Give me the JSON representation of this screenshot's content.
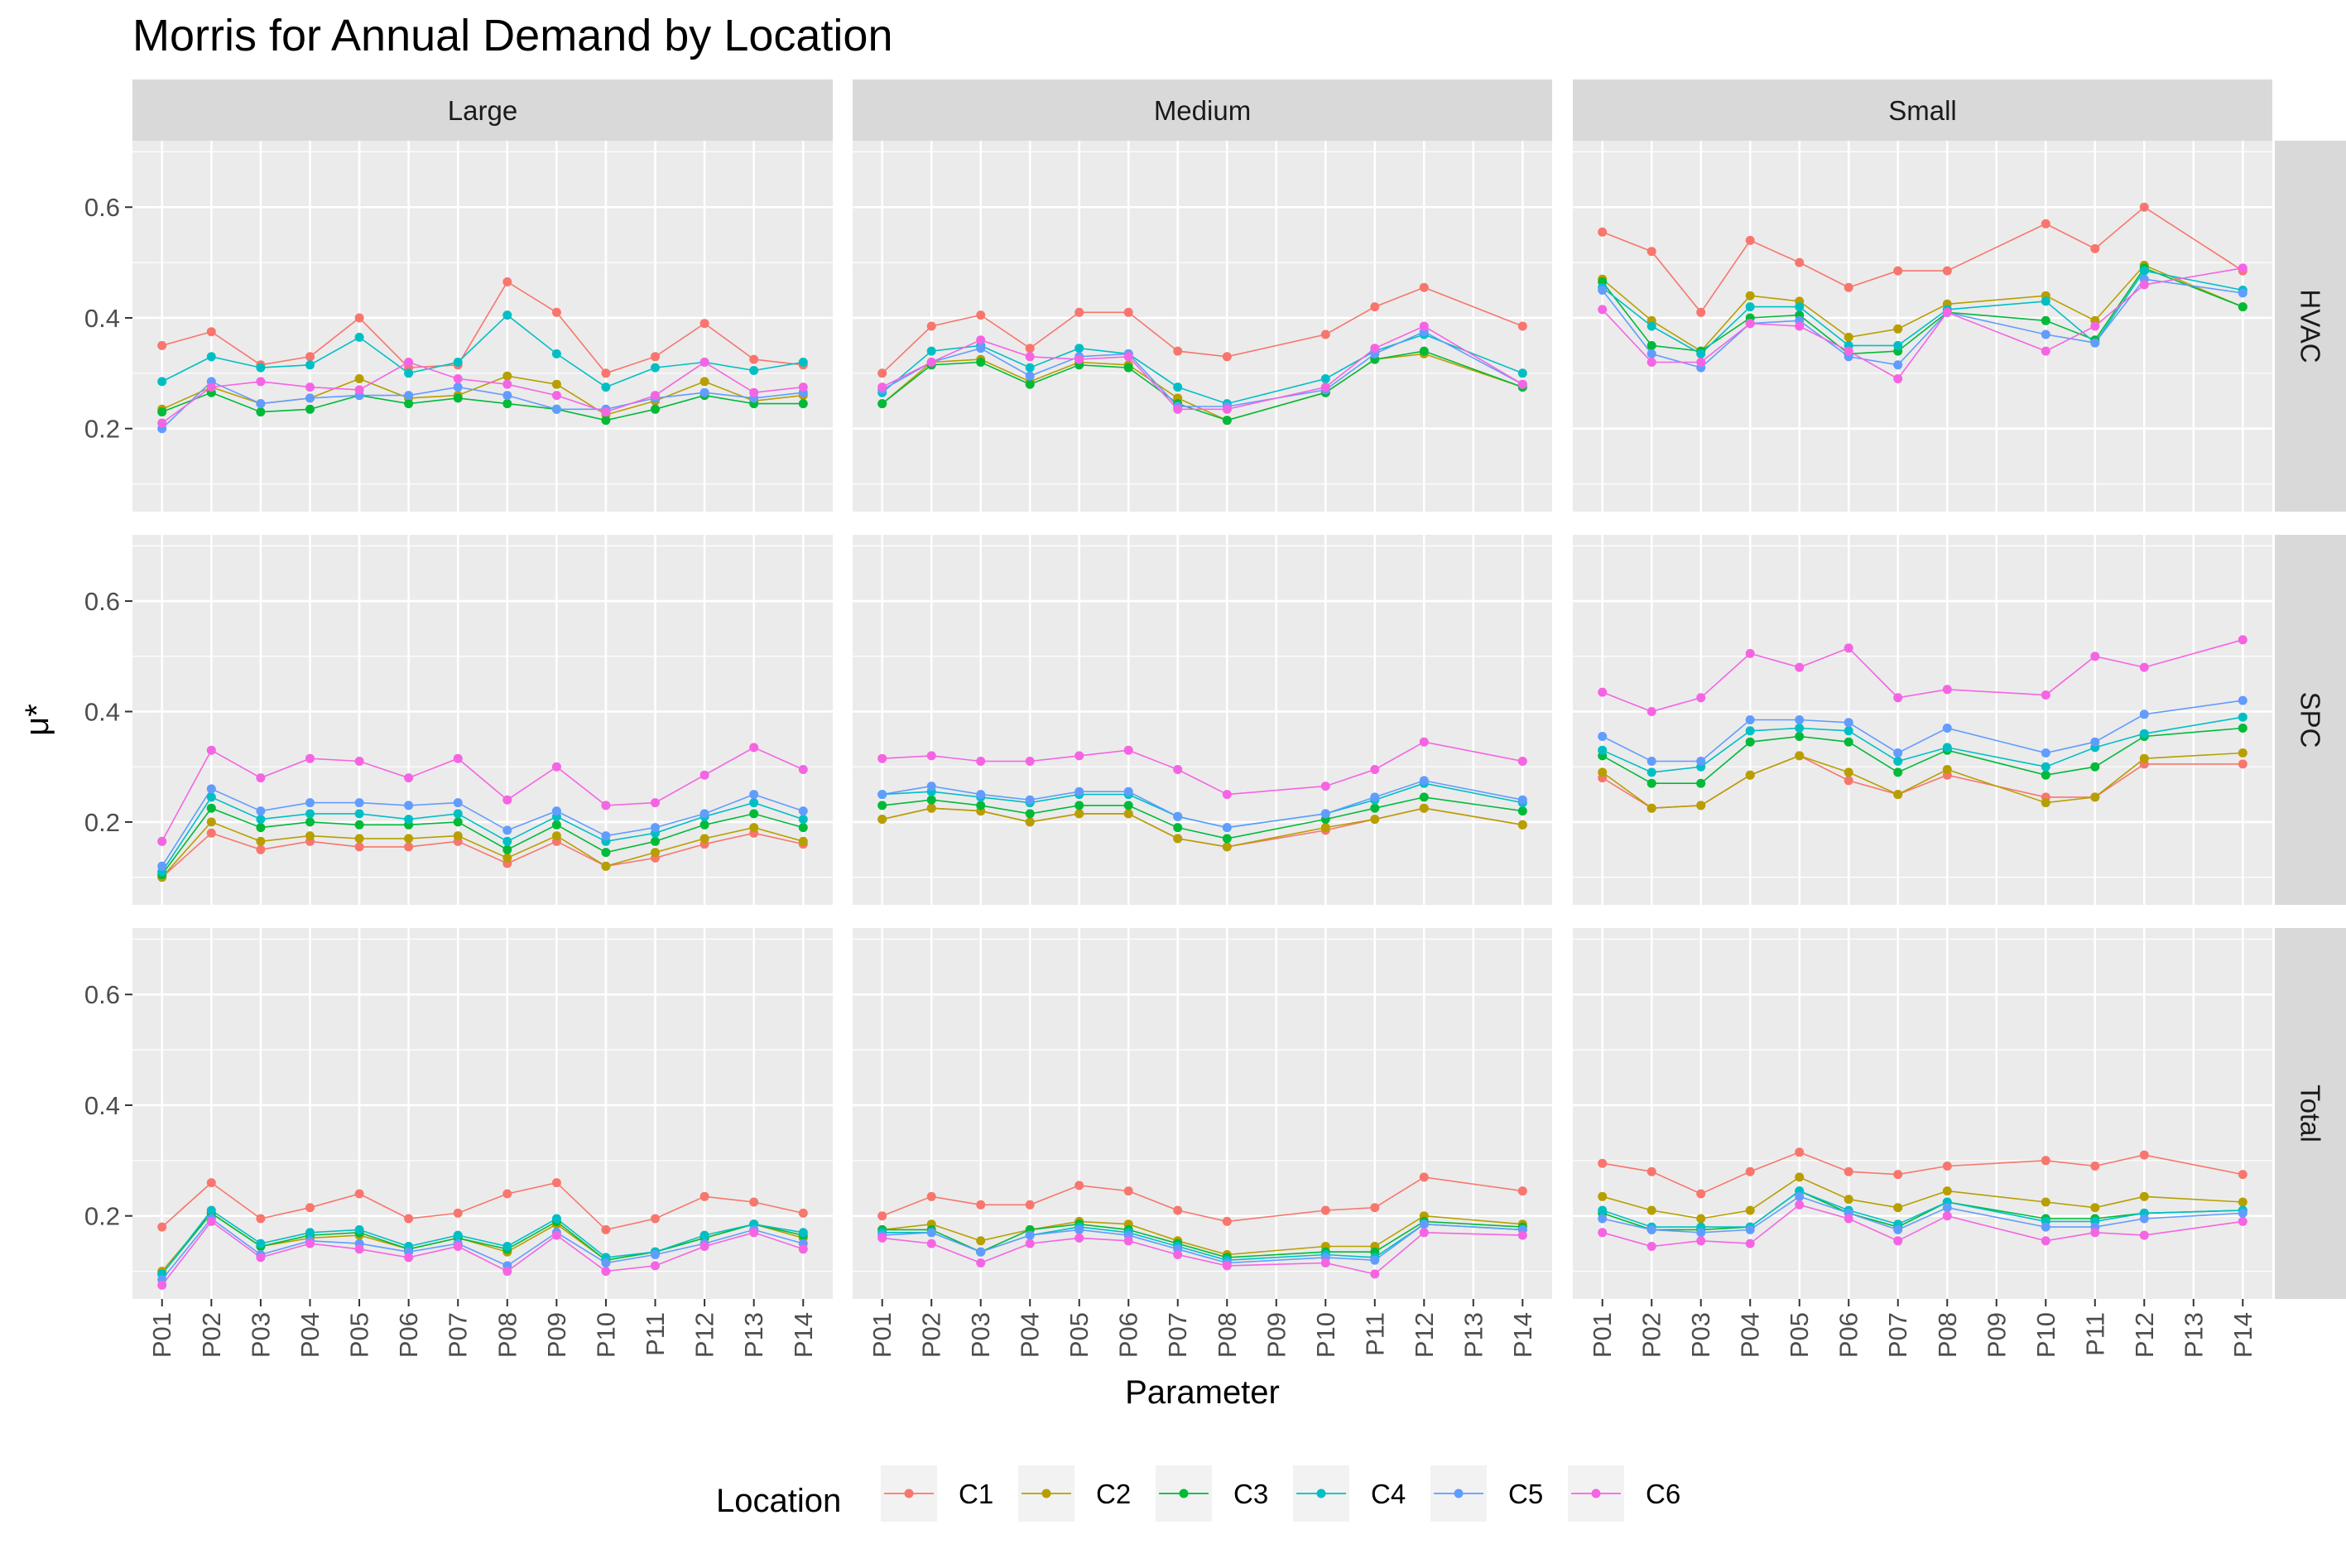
{
  "chart_data": {
    "type": "line",
    "title": "Morris for Annual Demand by Location",
    "xlabel": "Parameter",
    "ylabel": "μ*",
    "ylim": [
      0.05,
      0.72
    ],
    "yticks": [
      0.2,
      0.4,
      0.6
    ],
    "ytick_labels": [
      "0.2",
      "0.4",
      "0.6"
    ],
    "grid": true,
    "legend_title": "Location",
    "legend_position": "bottom",
    "categories": [
      "P01",
      "P02",
      "P03",
      "P04",
      "P05",
      "P06",
      "P07",
      "P08",
      "P09",
      "P10",
      "P11",
      "P12",
      "P13",
      "P14"
    ],
    "col_facets": [
      "Large",
      "Medium",
      "Small"
    ],
    "row_facets": [
      "HVAC",
      "SPC",
      "Total"
    ],
    "series": [
      {
        "name": "C1",
        "color": "#F8766D"
      },
      {
        "name": "C2",
        "color": "#B79F00"
      },
      {
        "name": "C3",
        "color": "#00BA38"
      },
      {
        "name": "C4",
        "color": "#00BFC4"
      },
      {
        "name": "C5",
        "color": "#619CFF"
      },
      {
        "name": "C6",
        "color": "#F564E3"
      }
    ],
    "panels": [
      {
        "row": "HVAC",
        "col": "Large",
        "values": [
          [
            0.35,
            0.375,
            0.315,
            0.33,
            0.4,
            0.31,
            0.315,
            0.465,
            0.41,
            0.3,
            0.33,
            0.39,
            0.325,
            0.315
          ],
          [
            0.235,
            0.275,
            0.245,
            0.255,
            0.29,
            0.255,
            0.26,
            0.295,
            0.28,
            0.225,
            0.25,
            0.285,
            0.25,
            0.26
          ],
          [
            0.23,
            0.265,
            0.23,
            0.235,
            0.26,
            0.245,
            0.255,
            0.245,
            0.235,
            0.215,
            0.235,
            0.26,
            0.245,
            0.245
          ],
          [
            0.285,
            0.33,
            0.31,
            0.315,
            0.365,
            0.3,
            0.32,
            0.405,
            0.335,
            0.275,
            0.31,
            0.32,
            0.305,
            0.32
          ],
          [
            0.2,
            0.285,
            0.245,
            0.255,
            0.26,
            0.26,
            0.275,
            0.26,
            0.235,
            0.235,
            0.255,
            0.265,
            0.255,
            0.265
          ],
          [
            0.21,
            0.275,
            0.285,
            0.275,
            0.27,
            0.32,
            0.29,
            0.28,
            0.26,
            0.23,
            0.26,
            0.32,
            0.265,
            0.275
          ]
        ]
      },
      {
        "row": "HVAC",
        "col": "Medium",
        "values": [
          [
            0.3,
            0.385,
            0.405,
            0.345,
            0.41,
            0.41,
            0.34,
            0.33,
            null,
            0.37,
            0.42,
            0.455,
            null,
            0.385
          ],
          [
            0.245,
            0.32,
            0.325,
            0.285,
            0.32,
            0.315,
            0.255,
            0.215,
            null,
            0.265,
            0.325,
            0.335,
            null,
            0.275
          ],
          [
            0.245,
            0.315,
            0.32,
            0.28,
            0.315,
            0.31,
            0.245,
            0.215,
            null,
            0.265,
            0.325,
            0.34,
            null,
            0.275
          ],
          [
            0.265,
            0.34,
            0.35,
            0.31,
            0.345,
            0.335,
            0.275,
            0.245,
            null,
            0.29,
            0.34,
            0.37,
            null,
            0.3
          ],
          [
            0.27,
            0.32,
            0.345,
            0.295,
            0.33,
            0.335,
            0.24,
            0.24,
            null,
            0.27,
            0.335,
            0.375,
            null,
            0.28
          ],
          [
            0.275,
            0.32,
            0.36,
            0.33,
            0.325,
            0.33,
            0.235,
            0.235,
            null,
            0.275,
            0.345,
            0.385,
            null,
            0.28
          ]
        ]
      },
      {
        "row": "HVAC",
        "col": "Small",
        "values": [
          [
            0.555,
            0.52,
            0.41,
            0.54,
            0.5,
            0.455,
            0.485,
            0.485,
            null,
            0.57,
            0.525,
            0.6,
            null,
            0.485
          ],
          [
            0.47,
            0.395,
            0.34,
            0.44,
            0.43,
            0.365,
            0.38,
            0.425,
            null,
            0.44,
            0.395,
            0.495,
            null,
            0.42
          ],
          [
            0.465,
            0.35,
            0.34,
            0.4,
            0.405,
            0.335,
            0.34,
            0.41,
            null,
            0.395,
            0.36,
            0.49,
            null,
            0.42
          ],
          [
            0.455,
            0.385,
            0.335,
            0.42,
            0.42,
            0.35,
            0.35,
            0.415,
            null,
            0.43,
            0.355,
            0.485,
            null,
            0.45
          ],
          [
            0.45,
            0.335,
            0.31,
            0.39,
            0.395,
            0.33,
            0.315,
            0.41,
            null,
            0.37,
            0.355,
            0.47,
            null,
            0.445
          ],
          [
            0.415,
            0.32,
            0.32,
            0.39,
            0.385,
            0.34,
            0.29,
            0.41,
            null,
            0.34,
            0.385,
            0.46,
            null,
            0.49
          ]
        ]
      },
      {
        "row": "SPC",
        "col": "Large",
        "values": [
          [
            0.1,
            0.18,
            0.15,
            0.165,
            0.155,
            0.155,
            0.165,
            0.125,
            0.165,
            0.12,
            0.135,
            0.16,
            0.18,
            0.16
          ],
          [
            0.1,
            0.2,
            0.165,
            0.175,
            0.17,
            0.17,
            0.175,
            0.135,
            0.175,
            0.12,
            0.145,
            0.17,
            0.19,
            0.165
          ],
          [
            0.105,
            0.225,
            0.19,
            0.2,
            0.195,
            0.195,
            0.2,
            0.15,
            0.195,
            0.145,
            0.165,
            0.195,
            0.215,
            0.19
          ],
          [
            0.11,
            0.245,
            0.205,
            0.215,
            0.215,
            0.205,
            0.215,
            0.165,
            0.21,
            0.165,
            0.18,
            0.21,
            0.235,
            0.205
          ],
          [
            0.12,
            0.26,
            0.22,
            0.235,
            0.235,
            0.23,
            0.235,
            0.185,
            0.22,
            0.175,
            0.19,
            0.215,
            0.25,
            0.22
          ],
          [
            0.165,
            0.33,
            0.28,
            0.315,
            0.31,
            0.28,
            0.315,
            0.24,
            0.3,
            0.23,
            0.235,
            0.285,
            0.335,
            0.295
          ]
        ]
      },
      {
        "row": "SPC",
        "col": "Medium",
        "values": [
          [
            0.205,
            0.225,
            0.22,
            0.2,
            0.215,
            0.215,
            0.17,
            0.155,
            null,
            0.185,
            0.205,
            0.225,
            null,
            0.195
          ],
          [
            0.205,
            0.225,
            0.22,
            0.2,
            0.215,
            0.215,
            0.17,
            0.155,
            null,
            0.19,
            0.205,
            0.225,
            null,
            0.195
          ],
          [
            0.23,
            0.24,
            0.23,
            0.215,
            0.23,
            0.23,
            0.19,
            0.17,
            null,
            0.205,
            0.225,
            0.245,
            null,
            0.22
          ],
          [
            0.25,
            0.255,
            0.245,
            0.235,
            0.25,
            0.25,
            0.21,
            0.19,
            null,
            0.215,
            0.24,
            0.27,
            null,
            0.235
          ],
          [
            0.25,
            0.265,
            0.25,
            0.24,
            0.255,
            0.255,
            0.21,
            0.19,
            null,
            0.215,
            0.245,
            0.275,
            null,
            0.24
          ],
          [
            0.315,
            0.32,
            0.31,
            0.31,
            0.32,
            0.33,
            0.295,
            0.25,
            null,
            0.265,
            0.295,
            0.345,
            null,
            0.31
          ]
        ]
      },
      {
        "row": "SPC",
        "col": "Small",
        "values": [
          [
            0.28,
            0.225,
            0.23,
            0.285,
            0.32,
            0.275,
            0.25,
            0.285,
            null,
            0.245,
            0.245,
            0.305,
            null,
            0.305
          ],
          [
            0.29,
            0.225,
            0.23,
            0.285,
            0.32,
            0.29,
            0.25,
            0.295,
            null,
            0.235,
            0.245,
            0.315,
            null,
            0.325
          ],
          [
            0.32,
            0.27,
            0.27,
            0.345,
            0.355,
            0.345,
            0.29,
            0.33,
            null,
            0.285,
            0.3,
            0.355,
            null,
            0.37
          ],
          [
            0.33,
            0.29,
            0.3,
            0.365,
            0.37,
            0.365,
            0.31,
            0.335,
            null,
            0.3,
            0.335,
            0.36,
            null,
            0.39
          ],
          [
            0.355,
            0.31,
            0.31,
            0.385,
            0.385,
            0.38,
            0.325,
            0.37,
            null,
            0.325,
            0.345,
            0.395,
            null,
            0.42
          ],
          [
            0.435,
            0.4,
            0.425,
            0.505,
            0.48,
            0.515,
            0.425,
            0.44,
            null,
            0.43,
            0.5,
            0.48,
            null,
            0.53
          ]
        ]
      },
      {
        "row": "Total",
        "col": "Large",
        "values": [
          [
            0.18,
            0.26,
            0.195,
            0.215,
            0.24,
            0.195,
            0.205,
            0.24,
            0.26,
            0.175,
            0.195,
            0.235,
            0.225,
            0.205
          ],
          [
            0.1,
            0.205,
            0.145,
            0.16,
            0.165,
            0.14,
            0.16,
            0.135,
            0.185,
            0.12,
            0.135,
            0.16,
            0.185,
            0.16
          ],
          [
            0.095,
            0.205,
            0.145,
            0.165,
            0.17,
            0.14,
            0.16,
            0.14,
            0.19,
            0.12,
            0.135,
            0.16,
            0.185,
            0.165
          ],
          [
            0.095,
            0.21,
            0.15,
            0.17,
            0.175,
            0.145,
            0.165,
            0.145,
            0.195,
            0.125,
            0.135,
            0.165,
            0.185,
            0.17
          ],
          [
            0.085,
            0.195,
            0.13,
            0.155,
            0.15,
            0.135,
            0.15,
            0.11,
            0.17,
            0.115,
            0.13,
            0.15,
            0.175,
            0.15
          ],
          [
            0.075,
            0.19,
            0.125,
            0.15,
            0.14,
            0.125,
            0.145,
            0.1,
            0.165,
            0.1,
            0.11,
            0.145,
            0.17,
            0.14
          ]
        ]
      },
      {
        "row": "Total",
        "col": "Medium",
        "values": [
          [
            0.2,
            0.235,
            0.22,
            0.22,
            0.255,
            0.245,
            0.21,
            0.19,
            null,
            0.21,
            0.215,
            0.27,
            null,
            0.245
          ],
          [
            0.175,
            0.185,
            0.155,
            0.175,
            0.19,
            0.185,
            0.155,
            0.13,
            null,
            0.145,
            0.145,
            0.2,
            null,
            0.185
          ],
          [
            0.175,
            0.175,
            0.135,
            0.175,
            0.185,
            0.175,
            0.15,
            0.125,
            null,
            0.135,
            0.135,
            0.19,
            null,
            0.18
          ],
          [
            0.17,
            0.17,
            0.135,
            0.165,
            0.18,
            0.17,
            0.145,
            0.12,
            null,
            0.13,
            0.125,
            0.185,
            null,
            0.175
          ],
          [
            0.165,
            0.17,
            0.135,
            0.165,
            0.175,
            0.165,
            0.14,
            0.115,
            null,
            0.125,
            0.12,
            0.185,
            null,
            0.175
          ],
          [
            0.16,
            0.15,
            0.115,
            0.15,
            0.16,
            0.155,
            0.13,
            0.11,
            null,
            0.115,
            0.095,
            0.17,
            null,
            0.165
          ]
        ]
      },
      {
        "row": "Total",
        "col": "Small",
        "values": [
          [
            0.295,
            0.28,
            0.24,
            0.28,
            0.315,
            0.28,
            0.275,
            0.29,
            null,
            0.3,
            0.29,
            0.31,
            null,
            0.275
          ],
          [
            0.235,
            0.21,
            0.195,
            0.21,
            0.27,
            0.23,
            0.215,
            0.245,
            null,
            0.225,
            0.215,
            0.235,
            null,
            0.225
          ],
          [
            0.205,
            0.175,
            0.175,
            0.18,
            0.245,
            0.205,
            0.18,
            0.225,
            null,
            0.195,
            0.195,
            0.205,
            null,
            0.21
          ],
          [
            0.21,
            0.18,
            0.18,
            0.18,
            0.245,
            0.21,
            0.185,
            0.225,
            null,
            0.19,
            0.19,
            0.205,
            null,
            0.21
          ],
          [
            0.195,
            0.175,
            0.17,
            0.175,
            0.235,
            0.205,
            0.175,
            0.215,
            null,
            0.18,
            0.18,
            0.195,
            null,
            0.205
          ],
          [
            0.17,
            0.145,
            0.155,
            0.15,
            0.22,
            0.195,
            0.155,
            0.2,
            null,
            0.155,
            0.17,
            0.165,
            null,
            0.19
          ]
        ]
      }
    ]
  }
}
